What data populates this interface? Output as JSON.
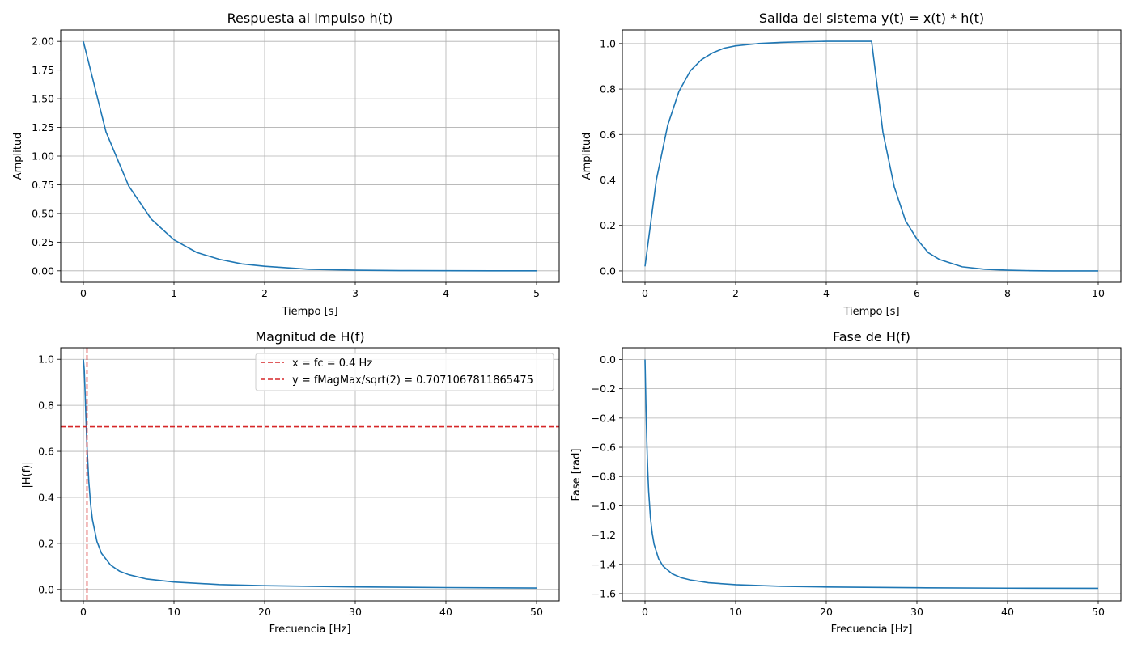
{
  "chart_data": [
    {
      "type": "line",
      "title": "Respuesta al Impulso h(t)",
      "xlabel": "Tiempo [s]",
      "ylabel": "Amplitud",
      "xlim": [
        -0.25,
        5.25
      ],
      "ylim": [
        -0.1,
        2.1
      ],
      "xticks": [
        0,
        1,
        2,
        3,
        4,
        5
      ],
      "xtick_labels": [
        "0",
        "1",
        "2",
        "3",
        "4",
        "5"
      ],
      "yticks": [
        0,
        0.25,
        0.5,
        0.75,
        1.0,
        1.25,
        1.5,
        1.75,
        2.0
      ],
      "ytick_labels": [
        "0.00",
        "0.25",
        "0.50",
        "0.75",
        "1.00",
        "1.25",
        "1.50",
        "1.75",
        "2.00"
      ],
      "grid": true,
      "series": [
        {
          "color": "#1f77b4",
          "x": [
            0,
            0.25,
            0.5,
            0.75,
            1.0,
            1.25,
            1.5,
            1.75,
            2.0,
            2.5,
            3.0,
            3.5,
            4.0,
            4.5,
            5.0
          ],
          "y": [
            2.0,
            1.21,
            0.74,
            0.45,
            0.27,
            0.16,
            0.1,
            0.06,
            0.04,
            0.013,
            0.005,
            0.002,
            0.001,
            0.0,
            0.0
          ]
        }
      ]
    },
    {
      "type": "line",
      "title": "Salida del sistema y(t) = x(t) * h(t)",
      "xlabel": "Tiempo [s]",
      "ylabel": "Amplitud",
      "xlim": [
        -0.5,
        10.5
      ],
      "ylim": [
        -0.05,
        1.06
      ],
      "xticks": [
        0,
        2,
        4,
        6,
        8,
        10
      ],
      "xtick_labels": [
        "0",
        "2",
        "4",
        "6",
        "8",
        "10"
      ],
      "yticks": [
        0,
        0.2,
        0.4,
        0.6,
        0.8,
        1.0
      ],
      "ytick_labels": [
        "0.0",
        "0.2",
        "0.4",
        "0.6",
        "0.8",
        "1.0"
      ],
      "grid": true,
      "series": [
        {
          "color": "#1f77b4",
          "x": [
            0,
            0.25,
            0.5,
            0.75,
            1.0,
            1.25,
            1.5,
            1.75,
            2.0,
            2.5,
            3.0,
            3.5,
            4.0,
            4.5,
            5.0,
            5.25,
            5.5,
            5.75,
            6.0,
            6.25,
            6.5,
            7.0,
            7.5,
            8.0,
            8.5,
            9.0,
            9.5,
            10.0
          ],
          "y": [
            0.02,
            0.4,
            0.64,
            0.79,
            0.88,
            0.93,
            0.96,
            0.98,
            0.99,
            1.0,
            1.005,
            1.008,
            1.01,
            1.01,
            1.01,
            0.61,
            0.37,
            0.22,
            0.14,
            0.08,
            0.05,
            0.018,
            0.007,
            0.003,
            0.001,
            0.0,
            0.0,
            0.0
          ]
        }
      ]
    },
    {
      "type": "line",
      "title": "Magnitud de H(f)",
      "xlabel": "Frecuencia [Hz]",
      "ylabel": "|H(f)|",
      "xlim": [
        -2.5,
        52.5
      ],
      "ylim": [
        -0.05,
        1.05
      ],
      "xticks": [
        0,
        10,
        20,
        30,
        40,
        50
      ],
      "xtick_labels": [
        "0",
        "10",
        "20",
        "30",
        "40",
        "50"
      ],
      "yticks": [
        0,
        0.2,
        0.4,
        0.6,
        0.8,
        1.0
      ],
      "ytick_labels": [
        "0.0",
        "0.2",
        "0.4",
        "0.6",
        "0.8",
        "1.0"
      ],
      "grid": true,
      "legend_position": "top-right",
      "series": [
        {
          "color": "#1f77b4",
          "x": [
            0,
            0.1,
            0.2,
            0.3,
            0.4,
            0.6,
            0.8,
            1.0,
            1.5,
            2.0,
            3.0,
            4.0,
            5.0,
            7.0,
            10.0,
            15.0,
            20.0,
            30.0,
            40.0,
            50.0
          ],
          "y": [
            1.0,
            0.954,
            0.847,
            0.728,
            0.623,
            0.469,
            0.37,
            0.303,
            0.208,
            0.157,
            0.106,
            0.079,
            0.064,
            0.045,
            0.032,
            0.021,
            0.016,
            0.011,
            0.008,
            0.006
          ]
        }
      ],
      "reference_lines": [
        {
          "orientation": "vertical",
          "value": 0.4,
          "color": "#d62728",
          "label": "x = fc = 0.4 Hz"
        },
        {
          "orientation": "horizontal",
          "value": 0.7071067811865475,
          "color": "#d62728",
          "label": "y = fMagMax/sqrt(2) = 0.7071067811865475"
        }
      ]
    },
    {
      "type": "line",
      "title": "Fase de H(f)",
      "xlabel": "Frecuencia [Hz]",
      "ylabel": "Fase [rad]",
      "xlim": [
        -2.5,
        52.5
      ],
      "ylim": [
        -1.65,
        0.08
      ],
      "xticks": [
        0,
        10,
        20,
        30,
        40,
        50
      ],
      "xtick_labels": [
        "0",
        "10",
        "20",
        "30",
        "40",
        "50"
      ],
      "yticks": [
        0.0,
        -0.2,
        -0.4,
        -0.6,
        -0.8,
        -1.0,
        -1.2,
        -1.4,
        -1.6
      ],
      "ytick_labels": [
        "0.0",
        "−0.2",
        "−0.4",
        "−0.6",
        "−0.8",
        "−1.0",
        "−1.2",
        "−1.4",
        "−1.6"
      ],
      "grid": true,
      "series": [
        {
          "color": "#1f77b4",
          "x": [
            0,
            0.1,
            0.2,
            0.3,
            0.4,
            0.6,
            0.8,
            1.0,
            1.5,
            2.0,
            3.0,
            4.0,
            5.0,
            7.0,
            10.0,
            15.0,
            20.0,
            30.0,
            40.0,
            50.0
          ],
          "y": [
            0.0,
            -0.306,
            -0.561,
            -0.756,
            -0.899,
            -1.083,
            -1.19,
            -1.263,
            -1.362,
            -1.413,
            -1.465,
            -1.492,
            -1.507,
            -1.526,
            -1.539,
            -1.55,
            -1.555,
            -1.56,
            -1.563,
            -1.564
          ]
        }
      ]
    }
  ]
}
